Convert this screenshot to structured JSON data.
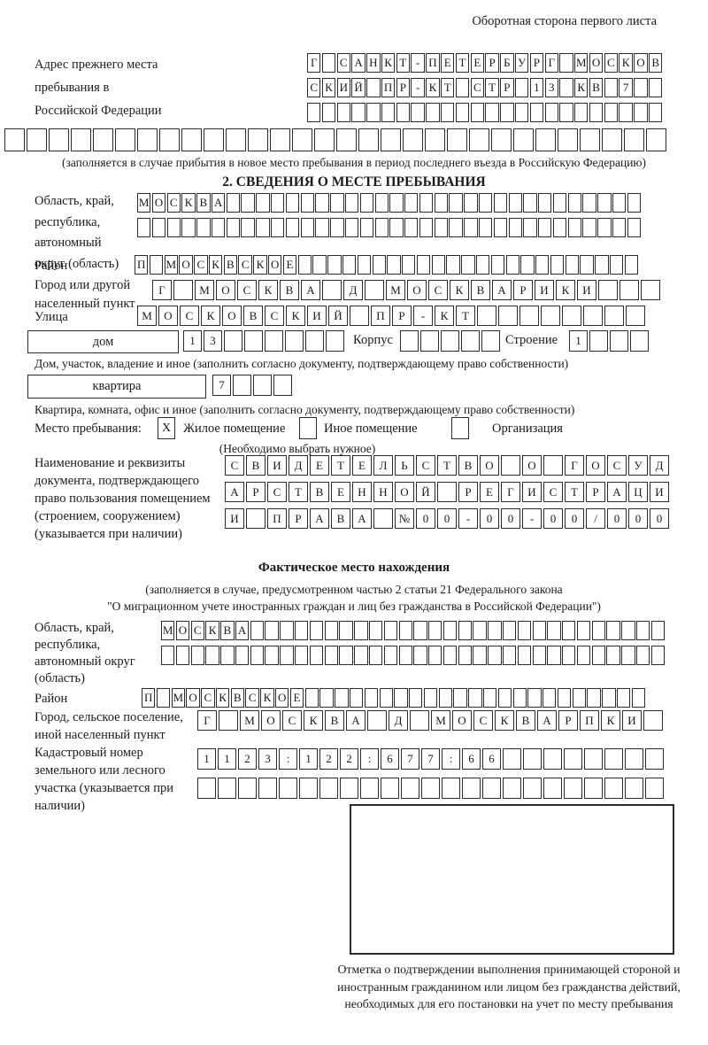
{
  "header": {
    "corner_note": "Оборотная сторона первого листа"
  },
  "prev_address": {
    "label": "Адрес прежнего места пребывания в Российской Федерации",
    "row1": "Г·САНКТ-ПЕТЕРБУРГ·МОСКОВ",
    "row2": "СКИЙ·ПР-КТ·СТР·13·КВ·7··",
    "row3": 24,
    "row4": 30,
    "note": "(заполняется в случае прибытия в новое место пребывания в период последнего въезда в Российскую Федерацию)"
  },
  "section2": {
    "title": "2. СВЕДЕНИЯ О МЕСТЕ ПРЕБЫВАНИЯ",
    "region_label": "Область, край, республика, автономный округ (область)",
    "region_row1": "МОСКВА····························",
    "region_row2": 34,
    "district_label": "Район",
    "district_row": "П·МОСКВСКОЕ·······················",
    "city_label": "Город или другой населенный пункт",
    "city_row": "Г·МОСКВА·Д·МОСКВАРИКИ···",
    "street_label": "Улица",
    "street_row": "МОСКОВСКИЙ·ПР-КТ········",
    "house_box_label": "дом",
    "house_row": "13······",
    "korpus_label": "Корпус",
    "korpus_row": 5,
    "stroenie_label": "Строение",
    "stroenie_row": "1···",
    "house_note": "Дом, участок, владение и иное (заполнить согласно документу, подтверждающему право собственности)",
    "apartment_box_label": "квартира",
    "apartment_row": "7···",
    "apartment_note": "Квартира, комната, офис и иное (заполнить согласно документу, подтверждающему право собственности)",
    "stay_label": "Место пребывания:",
    "stay_mark1": "X",
    "stay_opt1": "Жилое помещение",
    "stay_mark2": "",
    "stay_opt2": "Иное помещение",
    "stay_mark3": "",
    "stay_opt3": "Организация",
    "stay_note": "(Необходимо выбрать нужное)",
    "doc_label": "Наименование и реквизиты документа, подтверждающего право пользования помещением (строением, сооружением) (указывается при наличии)",
    "doc_row1": "СВИДЕТЕЛЬСТВО·О·ГОСУД",
    "doc_row2": "АРСТВЕННОЙ·РЕГИСТРАЦИ",
    "doc_row3": "И·ПРАВА·№00-00-00/000"
  },
  "actual_location": {
    "title": "Фактическое место нахождения",
    "note_line1": "(заполняется в случае, предусмотренном частью 2 статьи 21 Федерального закона",
    "note_line2": "\"О миграционном учете иностранных граждан и лиц без гражданства в Российской Федерации\")",
    "region_label": "Область, край, республика, автономный округ (область)",
    "region_row1": "МОСКВА····························",
    "region_row2": 34,
    "district_label": "Район",
    "district_row": "П·МОСКВСКОЕ·······················",
    "city_label": "Город, сельское поселение, иной населенный пункт",
    "city_row": "Г·МОСКВА·Д·МОСКВАРПКИ·",
    "cadastral_label": "Кадастровый номер земельного или лесного участка (указывается при наличии)",
    "cadastral_row1": "1123:122:677:66········",
    "cadastral_row2": 23,
    "stamp_note": "Отметка о подтверждении выполнения принимающей стороной и иностранным гражданином или лицом без гражданства действий, необходимых для его постановки на учет по месту пребывания"
  }
}
